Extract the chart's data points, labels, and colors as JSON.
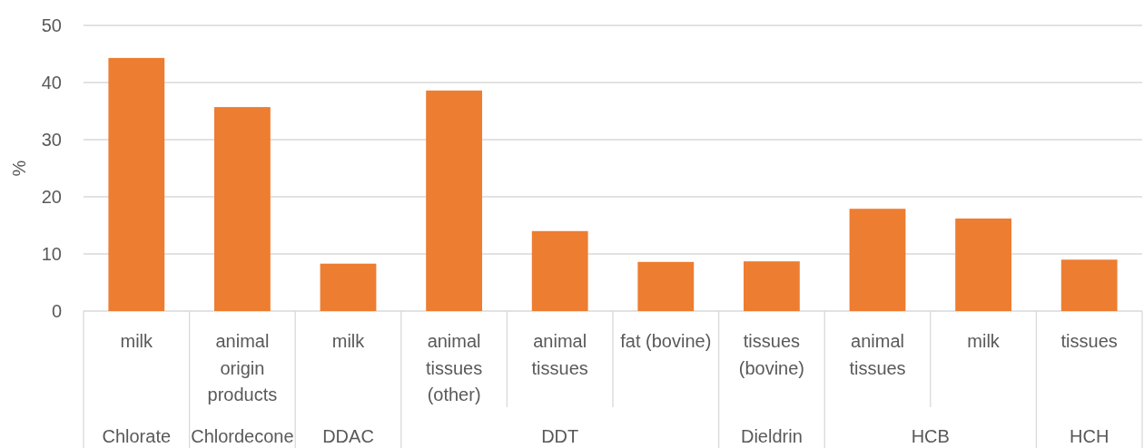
{
  "chart_data": {
    "type": "bar",
    "ylabel": "%",
    "categories": [
      "milk",
      "animal origin products",
      "milk",
      "animal tissues (other)",
      "animal tissues",
      "fat (bovine)",
      "tissues (bovine)",
      "animal tissues",
      "milk",
      "tissues"
    ],
    "values": [
      44.3,
      35.7,
      8.3,
      38.6,
      14.0,
      8.6,
      8.7,
      17.9,
      16.2,
      9.0
    ],
    "color": "#ed7d31",
    "ylim": [
      0,
      50
    ],
    "yticks": [
      0,
      10,
      20,
      30,
      40,
      50
    ],
    "grid": "y",
    "annotations": [
      "Chlorate",
      "Chlordecone",
      "DDAC",
      "DDT",
      "Dieldrin",
      "HCB",
      "HCH"
    ]
  }
}
